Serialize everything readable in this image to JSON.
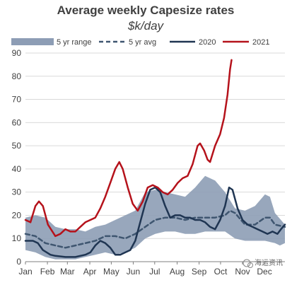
{
  "chart_data": {
    "type": "line",
    "title": "Average weekly Capesize rates",
    "subtitle": "$k/day",
    "xlabel": "",
    "ylabel": "",
    "ylim": [
      0,
      90
    ],
    "yticks": [
      0,
      10,
      20,
      30,
      40,
      50,
      60,
      70,
      80,
      90
    ],
    "xlim": [
      0,
      52
    ],
    "x_ticks": [
      {
        "label": "Jan",
        "week": 0
      },
      {
        "label": "Feb",
        "week": 4.4
      },
      {
        "label": "Mar",
        "week": 8.4
      },
      {
        "label": "Apr",
        "week": 12.9
      },
      {
        "label": "May",
        "week": 17.2
      },
      {
        "label": "Jun",
        "week": 21.6
      },
      {
        "label": "Jul",
        "week": 25.9
      },
      {
        "label": "Aug",
        "week": 30.4
      },
      {
        "label": "Sep",
        "week": 34.8
      },
      {
        "label": "Oct",
        "week": 39.1
      },
      {
        "label": "Nov",
        "week": 43.5
      },
      {
        "label": "Dec",
        "week": 47.9
      }
    ],
    "grid": "horizontal",
    "legend_position": "top",
    "colors": {
      "range": "#8d9db5",
      "avg": "#3f5670",
      "y2020": "#1f3552",
      "y2021": "#b5121b",
      "grid": "#d9d9d9",
      "axis": "#7f7f7f"
    },
    "range_upper": [
      [
        0,
        19
      ],
      [
        2,
        20
      ],
      [
        4,
        19
      ],
      [
        6,
        15
      ],
      [
        8,
        14
      ],
      [
        10,
        14
      ],
      [
        12,
        13
      ],
      [
        14,
        15
      ],
      [
        16,
        16
      ],
      [
        18,
        18
      ],
      [
        20,
        20
      ],
      [
        22,
        22
      ],
      [
        24,
        30
      ],
      [
        26,
        31
      ],
      [
        28,
        30
      ],
      [
        30,
        29
      ],
      [
        32,
        28
      ],
      [
        34,
        32
      ],
      [
        36,
        37
      ],
      [
        38,
        35
      ],
      [
        40,
        30
      ],
      [
        42,
        23
      ],
      [
        44,
        22
      ],
      [
        46,
        24
      ],
      [
        48,
        29
      ],
      [
        49,
        28
      ],
      [
        50,
        21
      ],
      [
        52,
        16
      ]
    ],
    "range_lower": [
      [
        0,
        5
      ],
      [
        2,
        4
      ],
      [
        4,
        2
      ],
      [
        6,
        1
      ],
      [
        8,
        1
      ],
      [
        10,
        1
      ],
      [
        12,
        2
      ],
      [
        14,
        3
      ],
      [
        16,
        4
      ],
      [
        18,
        3
      ],
      [
        20,
        4
      ],
      [
        22,
        6
      ],
      [
        24,
        10
      ],
      [
        26,
        12
      ],
      [
        28,
        13
      ],
      [
        30,
        13
      ],
      [
        32,
        12
      ],
      [
        34,
        12
      ],
      [
        36,
        13
      ],
      [
        38,
        13
      ],
      [
        40,
        13
      ],
      [
        42,
        10
      ],
      [
        44,
        9
      ],
      [
        46,
        9
      ],
      [
        48,
        9
      ],
      [
        50,
        8
      ],
      [
        51,
        7
      ],
      [
        52,
        8
      ]
    ],
    "series": [
      {
        "name": "5 yr range",
        "style": "band"
      },
      {
        "name": "5 yr avg",
        "style": "dashed",
        "points": [
          [
            0,
            12
          ],
          [
            2,
            11
          ],
          [
            4,
            8
          ],
          [
            6,
            7
          ],
          [
            8,
            6
          ],
          [
            10,
            7
          ],
          [
            12,
            8
          ],
          [
            14,
            9
          ],
          [
            16,
            11
          ],
          [
            18,
            11
          ],
          [
            20,
            10
          ],
          [
            22,
            12
          ],
          [
            24,
            15
          ],
          [
            26,
            18
          ],
          [
            28,
            19
          ],
          [
            30,
            19
          ],
          [
            32,
            18
          ],
          [
            34,
            19
          ],
          [
            36,
            19
          ],
          [
            38,
            19
          ],
          [
            40,
            20
          ],
          [
            41,
            22
          ],
          [
            42,
            21
          ],
          [
            44,
            16
          ],
          [
            46,
            16
          ],
          [
            48,
            19
          ],
          [
            49,
            19
          ],
          [
            50,
            16
          ],
          [
            52,
            15
          ]
        ]
      },
      {
        "name": "2020",
        "style": "solid",
        "points": [
          [
            0,
            9
          ],
          [
            1.5,
            9
          ],
          [
            2.5,
            8
          ],
          [
            3.5,
            5
          ],
          [
            5,
            3
          ],
          [
            6,
            2.5
          ],
          [
            8,
            2
          ],
          [
            10,
            2
          ],
          [
            12,
            3
          ],
          [
            13,
            4
          ],
          [
            14,
            7
          ],
          [
            15,
            9
          ],
          [
            16,
            8
          ],
          [
            17,
            6
          ],
          [
            18,
            3
          ],
          [
            19,
            3
          ],
          [
            20,
            4
          ],
          [
            21,
            5
          ],
          [
            22,
            9
          ],
          [
            23,
            17
          ],
          [
            24,
            25
          ],
          [
            25,
            31
          ],
          [
            26,
            32
          ],
          [
            27,
            30
          ],
          [
            28,
            24
          ],
          [
            29,
            19
          ],
          [
            30,
            20
          ],
          [
            31,
            20
          ],
          [
            32,
            19
          ],
          [
            33,
            19
          ],
          [
            34,
            18
          ],
          [
            35,
            18
          ],
          [
            36,
            17
          ],
          [
            37,
            15
          ],
          [
            38,
            14
          ],
          [
            39,
            18
          ],
          [
            40,
            24
          ],
          [
            40.8,
            32
          ],
          [
            41.5,
            31
          ],
          [
            42.5,
            23
          ],
          [
            43.5,
            18
          ],
          [
            44.5,
            16
          ],
          [
            45.5,
            15
          ],
          [
            46.5,
            14
          ],
          [
            47.5,
            13
          ],
          [
            48.5,
            12
          ],
          [
            49.5,
            13
          ],
          [
            50.5,
            12
          ],
          [
            51.2,
            14
          ],
          [
            52,
            16
          ]
        ]
      },
      {
        "name": "2021",
        "style": "solid",
        "points": [
          [
            0,
            18
          ],
          [
            1,
            17
          ],
          [
            2,
            24
          ],
          [
            2.7,
            26
          ],
          [
            3.5,
            24
          ],
          [
            4.5,
            16
          ],
          [
            6,
            11
          ],
          [
            7,
            12
          ],
          [
            8,
            14
          ],
          [
            9,
            13
          ],
          [
            10,
            13
          ],
          [
            11,
            15
          ],
          [
            12,
            17
          ],
          [
            13,
            18
          ],
          [
            14,
            19
          ],
          [
            15,
            23
          ],
          [
            16,
            28
          ],
          [
            17,
            34
          ],
          [
            18,
            40
          ],
          [
            18.8,
            43
          ],
          [
            19.5,
            40
          ],
          [
            20.5,
            32
          ],
          [
            21.5,
            25
          ],
          [
            22.5,
            22
          ],
          [
            23.5,
            26
          ],
          [
            24.5,
            32
          ],
          [
            25.5,
            33
          ],
          [
            26.5,
            32
          ],
          [
            27.5,
            30
          ],
          [
            28.5,
            29
          ],
          [
            29.5,
            31
          ],
          [
            30.5,
            34
          ],
          [
            31.5,
            36
          ],
          [
            32.5,
            37
          ],
          [
            33.5,
            42
          ],
          [
            34.5,
            50
          ],
          [
            35,
            51
          ],
          [
            35.8,
            48
          ],
          [
            36.5,
            44
          ],
          [
            37,
            43
          ],
          [
            38,
            50
          ],
          [
            39,
            55
          ],
          [
            39.8,
            62
          ],
          [
            40.5,
            72
          ],
          [
            41,
            83
          ],
          [
            41.3,
            87
          ]
        ]
      }
    ]
  },
  "watermark_text": "海运资讯"
}
